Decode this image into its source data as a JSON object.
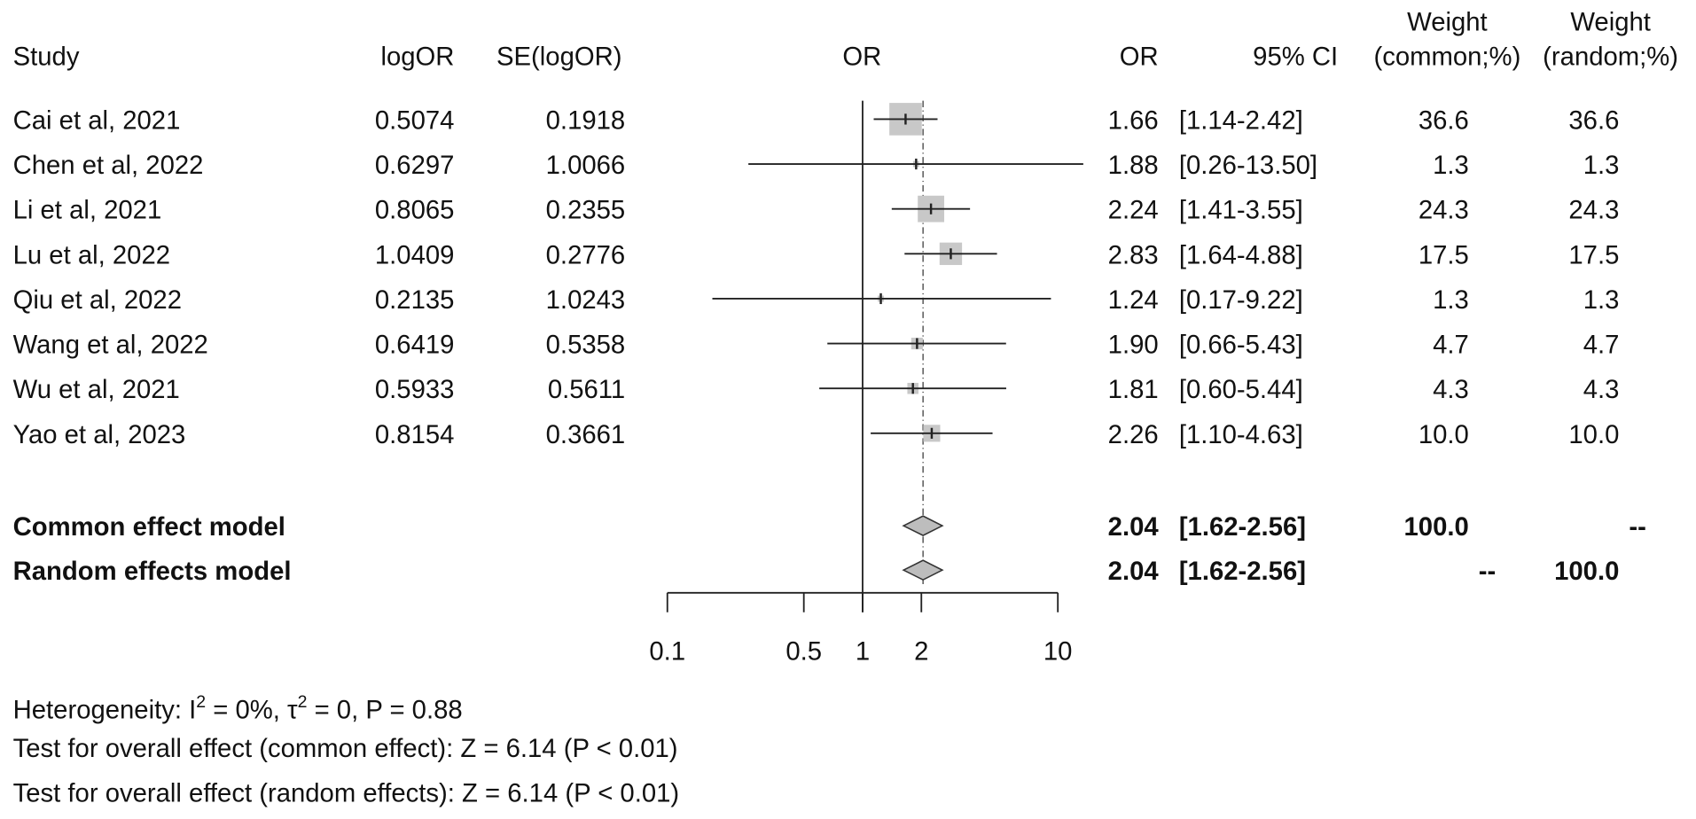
{
  "chart_data": {
    "type": "forest",
    "scale": "log",
    "xlim": [
      0.1,
      10
    ],
    "x_ticks": [
      "0.1",
      "0.5",
      "1",
      "2",
      "10"
    ],
    "x_tick_values": [
      0.1,
      0.5,
      1,
      2,
      10
    ],
    "reference_line": 1,
    "headers": {
      "study": "Study",
      "logor": "logOR",
      "se": "SE(logOR)",
      "plot": "OR",
      "or": "OR",
      "ci": "95% CI",
      "weight_common_1": "Weight",
      "weight_common_2": "(common;%)",
      "weight_random_1": "Weight",
      "weight_random_2": "(random;%)"
    },
    "studies": [
      {
        "study": "Cai et al, 2021",
        "logor": "0.5074",
        "se": "0.1918",
        "or": 1.66,
        "or_text": "1.66",
        "lower": 1.14,
        "upper": 2.42,
        "ci": "[1.14-2.42]",
        "w_common": "36.6",
        "w_random": "36.6",
        "weight": 36.6
      },
      {
        "study": "Chen et al, 2022",
        "logor": "0.6297",
        "se": "1.0066",
        "or": 1.88,
        "or_text": "1.88",
        "lower": 0.26,
        "upper": 13.5,
        "ci": "[0.26-13.50]",
        "w_common": "1.3",
        "w_random": "1.3",
        "weight": 1.3
      },
      {
        "study": "Li et al, 2021",
        "logor": "0.8065",
        "se": "0.2355",
        "or": 2.24,
        "or_text": "2.24",
        "lower": 1.41,
        "upper": 3.55,
        "ci": "[1.41-3.55]",
        "w_common": "24.3",
        "w_random": "24.3",
        "weight": 24.3
      },
      {
        "study": "Lu et al, 2022",
        "logor": "1.0409",
        "se": "0.2776",
        "or": 2.83,
        "or_text": "2.83",
        "lower": 1.64,
        "upper": 4.88,
        "ci": "[1.64-4.88]",
        "w_common": "17.5",
        "w_random": "17.5",
        "weight": 17.5
      },
      {
        "study": "Qiu et al, 2022",
        "logor": "0.2135",
        "se": "1.0243",
        "or": 1.24,
        "or_text": "1.24",
        "lower": 0.17,
        "upper": 9.22,
        "ci": "[0.17-9.22]",
        "w_common": "1.3",
        "w_random": "1.3",
        "weight": 1.3
      },
      {
        "study": "Wang et al, 2022",
        "logor": "0.6419",
        "se": "0.5358",
        "or": 1.9,
        "or_text": "1.90",
        "lower": 0.66,
        "upper": 5.43,
        "ci": "[0.66-5.43]",
        "w_common": "4.7",
        "w_random": "4.7",
        "weight": 4.7
      },
      {
        "study": "Wu et al, 2021",
        "logor": "0.5933",
        "se": "0.5611",
        "or": 1.81,
        "or_text": "1.81",
        "lower": 0.6,
        "upper": 5.44,
        "ci": "[0.60-5.44]",
        "w_common": "4.3",
        "w_random": "4.3",
        "weight": 4.3
      },
      {
        "study": "Yao et al, 2023",
        "logor": "0.8154",
        "se": "0.3661",
        "or": 2.26,
        "or_text": "2.26",
        "lower": 1.1,
        "upper": 4.63,
        "ci": "[1.10-4.63]",
        "w_common": "10.0",
        "w_random": "10.0",
        "weight": 10.0
      }
    ],
    "pooled": [
      {
        "label": "Common effect model",
        "or": 2.04,
        "or_text": "2.04",
        "lower": 1.62,
        "upper": 2.56,
        "ci": "[1.62-2.56]",
        "w_common": "100.0",
        "w_random": "--"
      },
      {
        "label": "Random effects model",
        "or": 2.04,
        "or_text": "2.04",
        "lower": 1.62,
        "upper": 2.56,
        "ci": "[1.62-2.56]",
        "w_common": "--",
        "w_random": "100.0"
      }
    ],
    "colors": {
      "box": "#c8c8c8",
      "diamond": "#bdbdbd",
      "line": "#222222"
    },
    "footer": {
      "heterogeneity_prefix": "Heterogeneity: I",
      "heterogeneity_mid": " = 0%, τ",
      "heterogeneity_suffix": " = 0, P = 0.88",
      "superscript": "2",
      "test_common": "Test for overall effect (common effect): Z = 6.14 (P < 0.01)",
      "test_random": "Test for overall effect (random effects): Z = 6.14 (P < 0.01)"
    }
  }
}
